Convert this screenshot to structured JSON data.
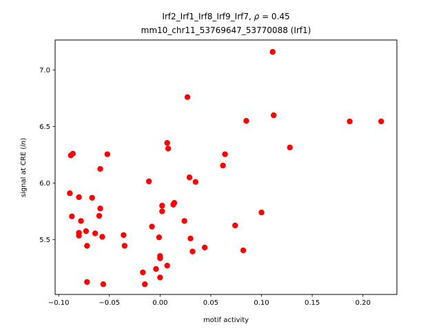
{
  "chart_data": {
    "type": "scatter",
    "title_line1": "Irf2_Irf1_Irf8_Irf9_Irf7, ",
    "title_rho_symbol": "ρ",
    "title_rho_value": " = 0.45",
    "title_line2": "mm10_chr11_53769647_53770088 (Irf1)",
    "xlabel": "motif activity",
    "ylabel_prefix": "signal at CRE (",
    "ylabel_italic": "ln",
    "ylabel_suffix": ")",
    "xlim": [
      -0.1035,
      0.2335
    ],
    "ylim": [
      5.015,
      7.265
    ],
    "xticks": [
      -0.1,
      -0.05,
      0.0,
      0.05,
      0.1,
      0.15,
      0.2
    ],
    "xtick_labels": [
      "−0.10",
      "−0.05",
      "0.00",
      "0.05",
      "0.10",
      "0.15",
      "0.20"
    ],
    "yticks": [
      5.5,
      6.0,
      6.5,
      7.0
    ],
    "ytick_labels": [
      "5.5",
      "6.0",
      "6.5",
      "7.0"
    ],
    "grid": false,
    "legend": "none",
    "marker_color": "#ff0000",
    "points": [
      {
        "x": 0.111,
        "y": 7.16
      },
      {
        "x": 0.027,
        "y": 6.76
      },
      {
        "x": 0.112,
        "y": 6.6
      },
      {
        "x": 0.085,
        "y": 6.55
      },
      {
        "x": 0.187,
        "y": 6.545
      },
      {
        "x": 0.218,
        "y": 6.545
      },
      {
        "x": 0.007,
        "y": 6.355
      },
      {
        "x": 0.008,
        "y": 6.305
      },
      {
        "x": 0.128,
        "y": 6.315
      },
      {
        "x": -0.086,
        "y": 6.26
      },
      {
        "x": -0.088,
        "y": 6.245
      },
      {
        "x": -0.052,
        "y": 6.255
      },
      {
        "x": 0.064,
        "y": 6.255
      },
      {
        "x": 0.062,
        "y": 6.155
      },
      {
        "x": -0.059,
        "y": 6.125
      },
      {
        "x": 0.029,
        "y": 6.05
      },
      {
        "x": 0.035,
        "y": 6.01
      },
      {
        "x": -0.011,
        "y": 6.015
      },
      {
        "x": -0.089,
        "y": 5.91
      },
      {
        "x": -0.08,
        "y": 5.875
      },
      {
        "x": -0.067,
        "y": 5.87
      },
      {
        "x": 0.014,
        "y": 5.825
      },
      {
        "x": 0.013,
        "y": 5.81
      },
      {
        "x": 0.002,
        "y": 5.8
      },
      {
        "x": -0.059,
        "y": 5.775
      },
      {
        "x": 0.002,
        "y": 5.75
      },
      {
        "x": 0.1,
        "y": 5.74
      },
      {
        "x": -0.087,
        "y": 5.705
      },
      {
        "x": -0.06,
        "y": 5.71
      },
      {
        "x": -0.078,
        "y": 5.665
      },
      {
        "x": 0.024,
        "y": 5.665
      },
      {
        "x": 0.074,
        "y": 5.625
      },
      {
        "x": -0.008,
        "y": 5.615
      },
      {
        "x": -0.073,
        "y": 5.575
      },
      {
        "x": -0.08,
        "y": 5.56
      },
      {
        "x": -0.064,
        "y": 5.555
      },
      {
        "x": -0.08,
        "y": 5.535
      },
      {
        "x": -0.057,
        "y": 5.525
      },
      {
        "x": -0.036,
        "y": 5.54
      },
      {
        "x": -0.001,
        "y": 5.52
      },
      {
        "x": 0.03,
        "y": 5.51
      },
      {
        "x": -0.072,
        "y": 5.445
      },
      {
        "x": -0.035,
        "y": 5.445
      },
      {
        "x": 0.044,
        "y": 5.43
      },
      {
        "x": 0.082,
        "y": 5.405
      },
      {
        "x": 0.032,
        "y": 5.395
      },
      {
        "x": 0.0,
        "y": 5.355
      },
      {
        "x": 0.0,
        "y": 5.335
      },
      {
        "x": 0.007,
        "y": 5.27
      },
      {
        "x": -0.004,
        "y": 5.24
      },
      {
        "x": -0.017,
        "y": 5.21
      },
      {
        "x": 0.0,
        "y": 5.165
      },
      {
        "x": -0.072,
        "y": 5.125
      },
      {
        "x": -0.056,
        "y": 5.105
      },
      {
        "x": -0.015,
        "y": 5.105
      }
    ]
  }
}
